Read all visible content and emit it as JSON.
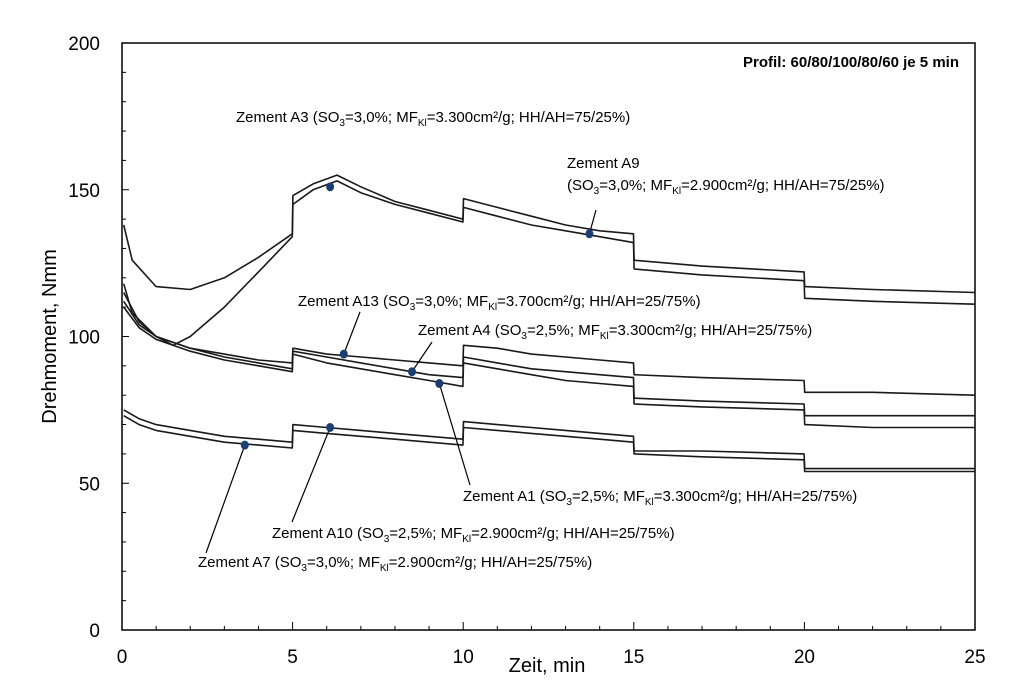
{
  "chart_data": {
    "type": "line",
    "xlabel": "Zeit, min",
    "ylabel": "Drehmoment, Nmm",
    "xlim": [
      0,
      25
    ],
    "ylim": [
      0,
      200
    ],
    "xticks": [
      0,
      5,
      10,
      15,
      20,
      25
    ],
    "yticks": [
      0,
      50,
      100,
      150,
      200
    ],
    "grid": false,
    "profile_note": "Profil: 60/80/100/80/60 je 5 min",
    "series": [
      {
        "name": "Zement A3",
        "label": "Zement A3 (SO3=3,0%; MFKl=3.300cm²/g; HH/AH=75/25%)",
        "x": [
          0.05,
          0.3,
          1.0,
          2.0,
          3.0,
          4.0,
          4.99,
          5.01,
          5.6,
          6.3,
          7.0,
          8.0,
          9.0,
          9.99,
          10.01,
          11.0,
          12.0,
          13.0,
          14.0,
          14.99,
          15.01,
          17.0,
          19.99,
          20.01,
          22.0,
          25.0
        ],
        "y": [
          138,
          126,
          117,
          116,
          120,
          127,
          135,
          148,
          152,
          155,
          151,
          146,
          143,
          140,
          147,
          144,
          141,
          138,
          136,
          135,
          126,
          124,
          122,
          117,
          116,
          115
        ]
      },
      {
        "name": "Zement A9",
        "label": "Zement A9 (SO3=3,0%; MFKl=2.900cm²/g; HH/AH=75/25%)",
        "x": [
          0.05,
          0.3,
          1.0,
          1.5,
          2.0,
          3.0,
          4.0,
          4.99,
          5.01,
          5.6,
          6.3,
          7.0,
          8.0,
          9.0,
          9.99,
          10.01,
          11.0,
          12.0,
          13.0,
          14.0,
          14.99,
          15.01,
          17.0,
          19.99,
          20.01,
          22.0,
          25.0
        ],
        "y": [
          118,
          108,
          100,
          97,
          100,
          110,
          122,
          134,
          145,
          150,
          153,
          149,
          145,
          142,
          139,
          144,
          141,
          138,
          136,
          134,
          132,
          123,
          121,
          119,
          113,
          112,
          111
        ]
      },
      {
        "name": "Zement A13",
        "label": "Zement A13 (SO3=3,0%; MFKl=3.700cm²/g; HH/AH=25/75%)",
        "x": [
          0.05,
          0.5,
          1.0,
          2.0,
          3.0,
          4.0,
          4.99,
          5.01,
          6.0,
          7.0,
          8.0,
          9.0,
          9.99,
          10.01,
          11.0,
          12.0,
          13.0,
          14.0,
          14.99,
          15.01,
          17.0,
          19.99,
          20.01,
          22.0,
          25.0
        ],
        "y": [
          115,
          105,
          100,
          96,
          94,
          92,
          91,
          96,
          94,
          93,
          92,
          91,
          90,
          97,
          96,
          94,
          93,
          92,
          91,
          87,
          86,
          85,
          81,
          81,
          80
        ]
      },
      {
        "name": "Zement A4",
        "label": "Zement A4 (SO3=2,5%; MFKl=3.300cm²/g; HH/AH=25/75%)",
        "x": [
          0.05,
          0.5,
          1.0,
          2.0,
          3.0,
          4.0,
          4.99,
          5.01,
          6.0,
          7.0,
          8.0,
          9.0,
          9.99,
          10.01,
          11.0,
          12.0,
          13.0,
          14.0,
          14.99,
          15.01,
          17.0,
          19.99,
          20.01,
          22.0,
          25.0
        ],
        "y": [
          112,
          104,
          100,
          96,
          93,
          91,
          89,
          95,
          93,
          91,
          89,
          87,
          86,
          93,
          91,
          89,
          88,
          87,
          86,
          79,
          78,
          77,
          73,
          73,
          73
        ]
      },
      {
        "name": "Zement A1",
        "label": "Zement A1 (SO3=2,5%; MFKl=3.300cm²/g; HH/AH=25/75%)",
        "x": [
          0.05,
          0.5,
          1.0,
          2.0,
          3.0,
          4.0,
          4.99,
          5.01,
          6.0,
          7.0,
          8.0,
          9.0,
          9.99,
          10.01,
          11.0,
          12.0,
          13.0,
          14.0,
          14.99,
          15.01,
          17.0,
          19.99,
          20.01,
          22.0,
          25.0
        ],
        "y": [
          110,
          103,
          99,
          95,
          92,
          90,
          88,
          94,
          91,
          89,
          87,
          85,
          83,
          91,
          89,
          87,
          85,
          84,
          83,
          77,
          76,
          75,
          70,
          69,
          69
        ]
      },
      {
        "name": "Zement A10",
        "label": "Zement A10 (SO3=2,5%; MFKl=2.900cm²/g; HH/AH=25/75%)",
        "x": [
          0.05,
          0.5,
          1.0,
          2.0,
          3.0,
          4.0,
          4.99,
          5.01,
          6.0,
          7.0,
          8.0,
          9.0,
          9.99,
          10.01,
          11.0,
          12.0,
          13.0,
          14.0,
          14.99,
          15.01,
          17.0,
          19.99,
          20.01,
          22.0,
          25.0
        ],
        "y": [
          75,
          72,
          70,
          68,
          66,
          65,
          64,
          70,
          69,
          68,
          67,
          66,
          65,
          71,
          70,
          69,
          68,
          67,
          66,
          61,
          61,
          60,
          55,
          55,
          55
        ]
      },
      {
        "name": "Zement A7",
        "label": "Zement A7 (SO3=3,0%; MFKl=2.900cm²/g; HH/AH=25/75%)",
        "x": [
          0.05,
          0.5,
          1.0,
          2.0,
          3.0,
          4.0,
          4.99,
          5.01,
          6.0,
          7.0,
          8.0,
          9.0,
          9.99,
          10.01,
          11.0,
          12.0,
          13.0,
          14.0,
          14.99,
          15.01,
          17.0,
          19.99,
          20.01,
          22.0,
          25.0
        ],
        "y": [
          73,
          70,
          68,
          66,
          64,
          63,
          62,
          68,
          67,
          66,
          65,
          64,
          63,
          69,
          68,
          67,
          66,
          65,
          64,
          60,
          59,
          58,
          54,
          54,
          54
        ]
      }
    ],
    "annotations": [
      {
        "series": "Zement A3",
        "name": "Zement A3",
        "so3": "3,0%",
        "mf": "3.300cm²/g",
        "hh": "75/25%",
        "point": [
          6.1,
          151
        ]
      },
      {
        "series": "Zement A9",
        "name": "Zement A9",
        "so3": "3,0%",
        "mf": "2.900cm²/g",
        "hh": "75/25%",
        "point": [
          13.7,
          135
        ]
      },
      {
        "series": "Zement A13",
        "name": "Zement A13",
        "so3": "3,0%",
        "mf": "3.700cm²/g",
        "hh": "25/75%",
        "point": [
          6.5,
          94
        ]
      },
      {
        "series": "Zement A4",
        "name": "Zement A4",
        "so3": "2,5%",
        "mf": "3.300cm²/g",
        "hh": "25/75%",
        "point": [
          8.5,
          88
        ]
      },
      {
        "series": "Zement A1",
        "name": "Zement A1",
        "so3": "2,5%",
        "mf": "3.300cm²/g",
        "hh": "25/75%",
        "point": [
          9.3,
          84
        ]
      },
      {
        "series": "Zement A10",
        "name": "Zement A10",
        "so3": "2,5%",
        "mf": "2.900cm²/g",
        "hh": "25/75%",
        "point": [
          6.1,
          69
        ]
      },
      {
        "series": "Zement A7",
        "name": "Zement A7",
        "so3": "3,0%",
        "mf": "2.900cm²/g",
        "hh": "25/75%",
        "point": [
          3.6,
          63
        ]
      }
    ],
    "label_parts": {
      "so3_prefix": "(SO",
      "so3_sub": "3",
      "mf_prefix": "MF",
      "mf_sub": "Kl",
      "hh_prefix": "HH/AH="
    }
  }
}
